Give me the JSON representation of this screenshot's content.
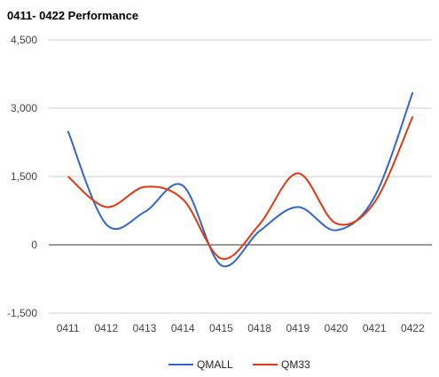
{
  "chart_data": {
    "type": "line",
    "title": "0411- 0422 Performance",
    "categories": [
      "0411",
      "0412",
      "0413",
      "0414",
      "0415",
      "0418",
      "0419",
      "0420",
      "0421",
      "0422"
    ],
    "ylim": [
      -1500,
      4500
    ],
    "yticks": [
      -1500,
      0,
      1500,
      3000,
      4500
    ],
    "ytick_labels": [
      "-1,500",
      "0",
      "1,500",
      "3,000",
      "4,500"
    ],
    "grid": true,
    "legend": "bottom",
    "series": [
      {
        "name": "QMALL",
        "color": "#3366cc",
        "values": [
          2500,
          450,
          720,
          1300,
          -450,
          300,
          830,
          320,
          1050,
          3350
        ]
      },
      {
        "name": "QM33",
        "color": "#dc3912",
        "values": [
          1500,
          830,
          1270,
          1000,
          -300,
          450,
          1570,
          470,
          930,
          2820
        ]
      }
    ]
  }
}
